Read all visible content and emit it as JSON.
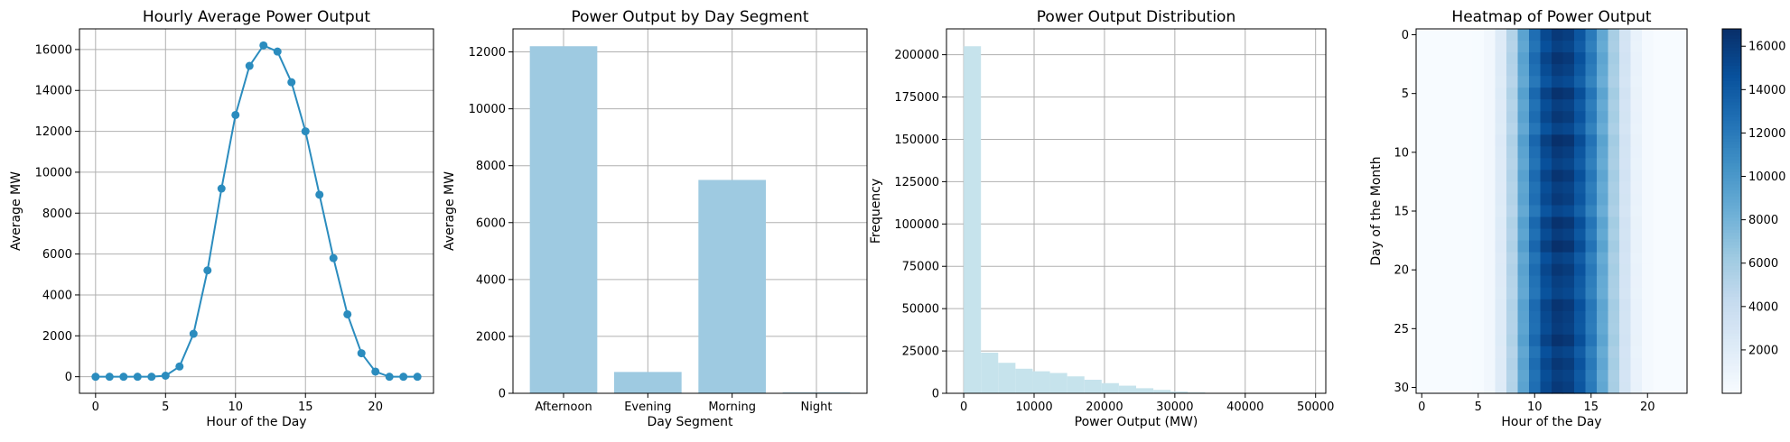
{
  "chart_data": [
    {
      "type": "line",
      "title": "Hourly Average Power Output",
      "xlabel": "Hour of the Day",
      "ylabel": "Average MW",
      "xlim": [
        -1.15,
        24.15
      ],
      "ylim": [
        -810,
        17010
      ],
      "xticks": [
        0,
        5,
        10,
        15,
        20
      ],
      "yticks": [
        0,
        2000,
        4000,
        6000,
        8000,
        10000,
        12000,
        14000,
        16000
      ],
      "grid": true,
      "color": "#2b8cbe",
      "series": [
        {
          "x": [
            0,
            1,
            2,
            3,
            4,
            5,
            6,
            7,
            8,
            9,
            10,
            11,
            12,
            13,
            14,
            15,
            16,
            17,
            18,
            19,
            20,
            21,
            22,
            23
          ],
          "values": [
            0,
            0,
            0,
            0,
            0,
            50,
            500,
            2100,
            5200,
            9200,
            12800,
            15200,
            16200,
            15900,
            14400,
            12000,
            8900,
            5800,
            3050,
            1150,
            250,
            0,
            0,
            0
          ]
        }
      ]
    },
    {
      "type": "bar",
      "title": "Power Output by Day Segment",
      "xlabel": "Day Segment",
      "ylabel": "Average MW",
      "categories": [
        "Afternoon",
        "Evening",
        "Morning",
        "Night"
      ],
      "values": [
        12200,
        750,
        7500,
        30
      ],
      "ylim": [
        0,
        12810
      ],
      "yticks": [
        0,
        2000,
        4000,
        6000,
        8000,
        10000,
        12000
      ],
      "grid": true,
      "color": "#9ecae1"
    },
    {
      "type": "bar",
      "title": "Power Output Distribution",
      "xlabel": "Power Output (MW)",
      "ylabel": "Frequency",
      "bin_width": 2450,
      "bins_start": 0,
      "values": [
        205000,
        24000,
        18000,
        14500,
        13000,
        12000,
        10000,
        8000,
        6000,
        4500,
        3000,
        2000,
        1000,
        500,
        200,
        100,
        50,
        20,
        10,
        5
      ],
      "xlim": [
        -2450,
        51450
      ],
      "ylim": [
        0,
        215250
      ],
      "xticks": [
        0,
        10000,
        20000,
        30000,
        40000,
        50000
      ],
      "yticks": [
        0,
        25000,
        50000,
        75000,
        100000,
        125000,
        150000,
        175000,
        200000
      ],
      "grid": true,
      "color": "#c6e3ec"
    },
    {
      "type": "heatmap",
      "title": "Heatmap of Power Output",
      "xlabel": "Hour of the Day",
      "ylabel": "Day of the Month",
      "rows": 31,
      "cols": 24,
      "hourly_profile": [
        0,
        0,
        0,
        0,
        0,
        50,
        500,
        2100,
        5200,
        9200,
        12800,
        15200,
        16200,
        15900,
        14400,
        12000,
        8900,
        5800,
        3050,
        1150,
        250,
        0,
        0,
        0
      ],
      "day_factors": [
        1.0,
        0.97,
        1.02,
        0.99,
        0.95,
        1.03,
        0.98,
        1.01,
        0.96,
        1.04,
        1.0,
        0.97,
        1.02,
        0.98,
        1.0,
        0.95,
        1.03,
        0.99,
        1.04,
        0.97,
        1.01,
        0.98,
        0.96,
        1.02,
        1.0,
        0.99,
        1.03,
        0.97,
        1.01,
        0.98,
        1.0
      ],
      "xticks": [
        0,
        5,
        10,
        15,
        20
      ],
      "yticks": [
        0,
        5,
        10,
        15,
        20,
        25,
        30
      ],
      "colorbar": {
        "vmin": 0,
        "vmax": 16800,
        "ticks": [
          2000,
          4000,
          6000,
          8000,
          10000,
          12000,
          14000,
          16000
        ]
      },
      "colormap": [
        "#f7fbff",
        "#deebf7",
        "#c6dbef",
        "#9ecae1",
        "#6baed6",
        "#4292c6",
        "#2171b5",
        "#08519c",
        "#08306b"
      ]
    }
  ]
}
